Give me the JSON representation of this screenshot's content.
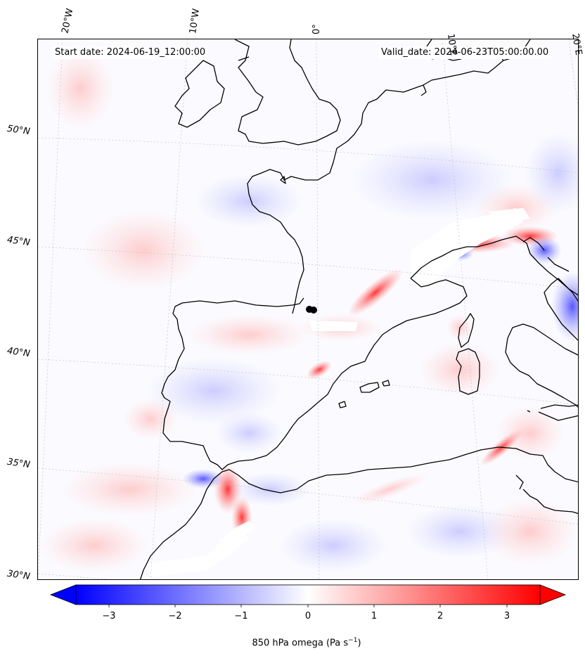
{
  "map": {
    "title_left": "Start date: 2024-06-19_12:00:00",
    "title_right": "Valid_date: 2024-06-23T05:00:00.00",
    "longitude_labels": [
      "20°W",
      "10°W",
      "0°",
      "10°E",
      "20°E"
    ],
    "latitude_labels": [
      "50°N",
      "45°N",
      "40°N",
      "35°N",
      "30°N"
    ],
    "field": "850 hPa omega",
    "colormap": "bwr",
    "colors": {
      "negative": "#0000ff",
      "zero": "#ffffff",
      "positive": "#ff0000",
      "coastline": "#000000"
    }
  },
  "colorbar": {
    "ticks": [
      "−3",
      "−2",
      "−1",
      "0",
      "1",
      "2",
      "3"
    ],
    "vmin": -3.5,
    "vmax": 3.5,
    "label_main": "850 hPa omega (Pa s",
    "label_exp": "−1",
    "label_close": ")"
  }
}
